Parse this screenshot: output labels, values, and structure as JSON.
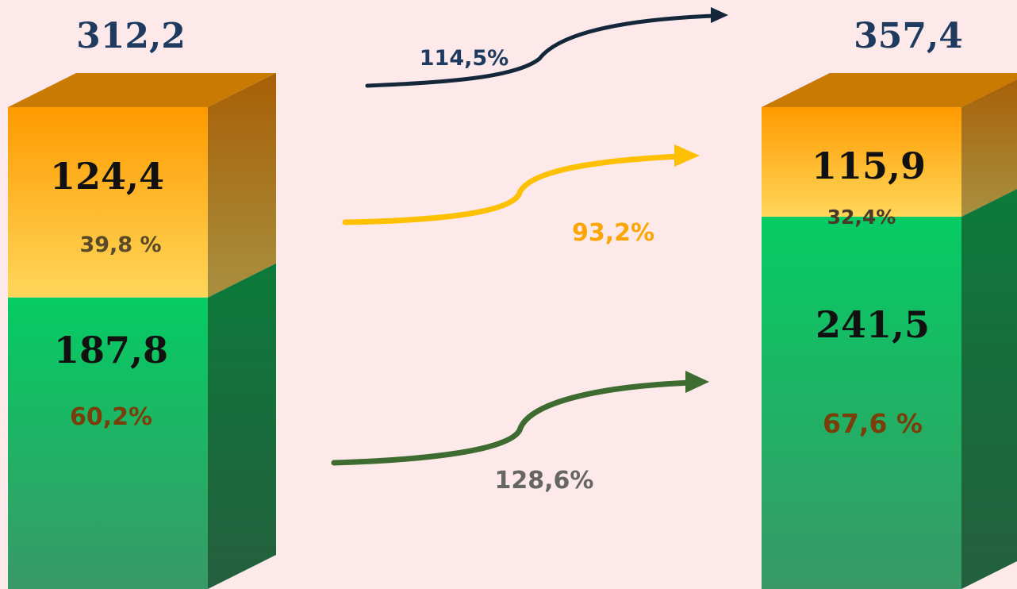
{
  "colors": {
    "background": "#fde9ea",
    "total_label": "#1e3a5f",
    "value_label": "#111111",
    "share_label_top_left": "#5a4a2a",
    "share_label_top_right": "#4a3a2a",
    "share_label_bottom": "#7a3e0a",
    "arrow_total": "#14263a",
    "arrow_top": "#ffc000",
    "arrow_bottom": "#3e6b30",
    "growth_total_label": "#1e3a5f",
    "growth_top_label": "#ffa500",
    "growth_bottom_label": "#666666"
  },
  "chart_data": {
    "type": "bar",
    "stacked": true,
    "style": "3d-columns",
    "categories": [
      "",
      ""
    ],
    "totals": [
      "312,2",
      "357,4"
    ],
    "series": [
      {
        "values": [
          187.8,
          241.5
        ],
        "value_labels": [
          "187,8",
          "241,5"
        ],
        "share_labels": [
          "60,2%",
          "67,6 %"
        ],
        "color": "green"
      },
      {
        "values": [
          124.4,
          115.9
        ],
        "value_labels": [
          "124,4",
          "115,9"
        ],
        "share_labels": [
          "39,8 %",
          "32,4%"
        ],
        "color": "orange"
      }
    ],
    "growth": {
      "total": "114,5%",
      "top_segment": "93,2%",
      "bottom_segment": "128,6%"
    },
    "legend": "none",
    "grid": false
  }
}
